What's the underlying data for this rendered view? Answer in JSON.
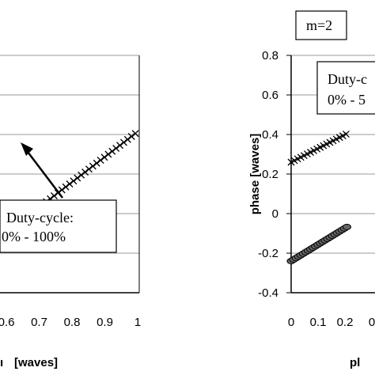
{
  "chart_data": [
    {
      "type": "scatter",
      "title": "",
      "xlabel": "[waves]",
      "ylabel": "",
      "x_ticks": [
        "0.6",
        "0.7",
        "0.8",
        "0.9",
        "1"
      ],
      "annotation": {
        "line1": "Duty-cycle:",
        "line2": "0% - 100%"
      },
      "xlim": [
        0.0,
        1.0
      ],
      "series": [
        {
          "marker": "x",
          "x": [
            0.5,
            0.55,
            0.6,
            0.65,
            0.7,
            0.75,
            0.8,
            0.85,
            0.9,
            0.95,
            1.0
          ],
          "y": [
            0.3,
            0.33,
            0.36,
            0.39,
            0.42,
            0.45,
            0.48,
            0.51,
            0.54,
            0.57,
            0.6
          ]
        }
      ],
      "grid": true
    },
    {
      "type": "scatter",
      "title": "",
      "label_box": "m=2",
      "xlabel": "pl",
      "ylabel": "phase [waves]",
      "y_ticks": [
        "0.8",
        "0.6",
        "0.4",
        "0.2",
        "0",
        "-0.2",
        "-0.4"
      ],
      "x_ticks": [
        "0",
        "0.1",
        "0.2",
        "0"
      ],
      "ylim": [
        -0.4,
        0.8
      ],
      "annotation": {
        "line1": "Duty-c",
        "line2": "0% - 5"
      },
      "series": [
        {
          "marker": "x",
          "x": [
            0.0,
            0.05,
            0.1,
            0.15,
            0.2,
            0.25,
            0.3
          ],
          "y": [
            0.26,
            0.285,
            0.31,
            0.335,
            0.36,
            0.385,
            0.41
          ]
        },
        {
          "marker": "dot",
          "x": [
            0.0,
            0.05,
            0.1,
            0.15,
            0.2,
            0.25,
            0.3
          ],
          "y": [
            -0.24,
            -0.21,
            -0.18,
            -0.15,
            -0.12,
            -0.09,
            -0.06
          ]
        }
      ],
      "grid": true
    }
  ]
}
